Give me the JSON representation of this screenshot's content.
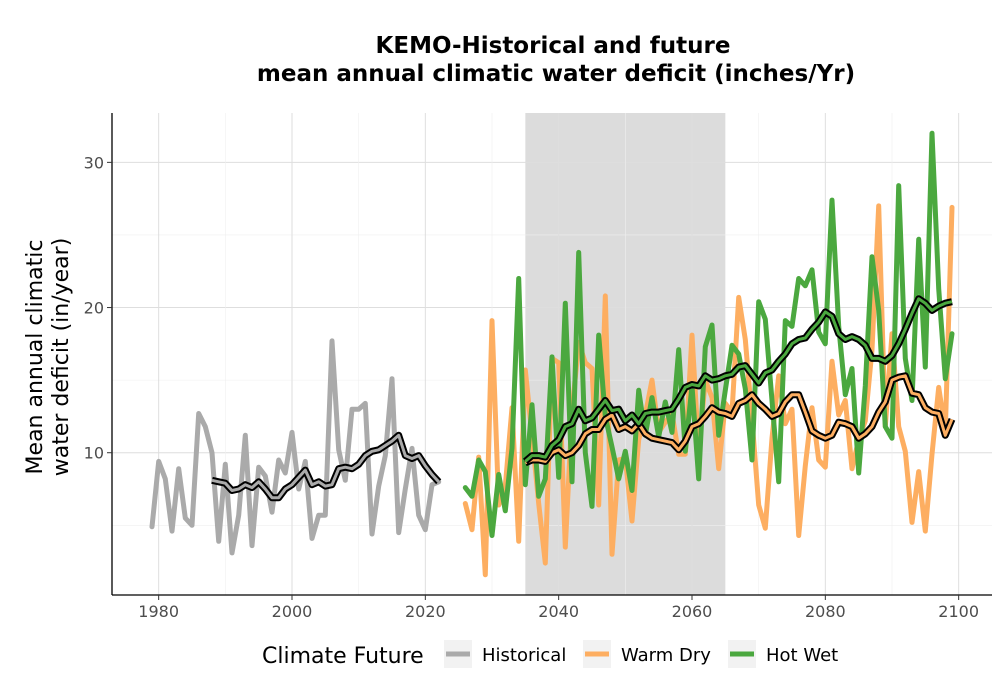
{
  "chart_data": {
    "type": "line",
    "title_line1": "KEMO-Historical and future",
    "title_line2": "mean annual climatic water deficit (inches/Yr)",
    "ylabel_line1": "Mean annual climatic",
    "ylabel_line2": "water deficit (in/year)",
    "xlabel": "",
    "xlim": [
      1973,
      2105
    ],
    "ylim": [
      0.2,
      33.4
    ],
    "xticks": [
      1980,
      2000,
      2020,
      2040,
      2060,
      2080,
      2100
    ],
    "yticks": [
      10,
      20,
      30
    ],
    "grid": true,
    "shaded_period": [
      2035,
      2065
    ],
    "legend": {
      "title": "Climate Future",
      "placement": "bottom"
    },
    "series": [
      {
        "name": "Historical",
        "color": "#aaaaaa",
        "x": [
          1979,
          1980,
          1981,
          1982,
          1983,
          1984,
          1985,
          1986,
          1987,
          1988,
          1989,
          1990,
          1991,
          1992,
          1993,
          1994,
          1995,
          1996,
          1997,
          1998,
          1999,
          2000,
          2001,
          2002,
          2003,
          2004,
          2005,
          2006,
          2007,
          2008,
          2009,
          2010,
          2011,
          2012,
          2013,
          2014,
          2015,
          2016,
          2017,
          2018,
          2019,
          2020,
          2021,
          2022
        ],
        "values": [
          4.9,
          9.4,
          8.2,
          4.6,
          8.9,
          5.5,
          5.0,
          12.7,
          11.8,
          10.0,
          3.9,
          9.2,
          3.1,
          5.7,
          11.2,
          3.6,
          9.0,
          8.4,
          5.9,
          9.5,
          8.6,
          11.4,
          7.5,
          9.4,
          4.1,
          5.7,
          5.7,
          17.7,
          10.2,
          8.1,
          13.0,
          13.0,
          13.4,
          4.4,
          7.7,
          9.8,
          15.1,
          4.5,
          7.5,
          10.3,
          5.7,
          4.7,
          7.8,
          8.0
        ]
      },
      {
        "name": "Warm Dry",
        "color": "#fdae61",
        "x": [
          2026,
          2027,
          2028,
          2029,
          2030,
          2031,
          2032,
          2033,
          2034,
          2035,
          2036,
          2037,
          2038,
          2039,
          2040,
          2041,
          2042,
          2043,
          2044,
          2045,
          2046,
          2047,
          2048,
          2049,
          2050,
          2051,
          2052,
          2053,
          2054,
          2055,
          2056,
          2057,
          2058,
          2059,
          2060,
          2061,
          2062,
          2063,
          2064,
          2065,
          2066,
          2067,
          2068,
          2069,
          2070,
          2071,
          2072,
          2073,
          2074,
          2075,
          2076,
          2077,
          2078,
          2079,
          2080,
          2081,
          2082,
          2083,
          2084,
          2085,
          2086,
          2087,
          2088,
          2089,
          2090,
          2091,
          2092,
          2093,
          2094,
          2095,
          2096,
          2097,
          2098,
          2099
        ],
        "values": [
          6.5,
          4.7,
          9.7,
          1.6,
          19.1,
          6.4,
          7.7,
          13.1,
          3.9,
          15.7,
          11.2,
          6.5,
          2.4,
          16.5,
          16.2,
          3.5,
          12.8,
          17.6,
          16.2,
          15.8,
          6.4,
          20.8,
          3.0,
          9.5,
          9.6,
          5.3,
          10.9,
          12.6,
          15.0,
          11.4,
          12.1,
          12.7,
          9.9,
          9.9,
          18.1,
          10.1,
          15.0,
          13.8,
          8.9,
          13.4,
          12.8,
          20.7,
          17.8,
          12.3,
          6.4,
          4.8,
          11.0,
          15.3,
          12.0,
          13.0,
          4.3,
          9.1,
          13.1,
          9.5,
          9.0,
          16.3,
          12.6,
          13.6,
          8.9,
          10.9,
          12.2,
          17.1,
          27.0,
          11.8,
          18.2,
          11.8,
          10.1,
          5.2,
          8.7,
          4.6,
          9.9,
          14.5,
          11.5,
          26.9
        ]
      },
      {
        "name": "Hot Wet",
        "color": "#4ba83f",
        "x": [
          2026,
          2027,
          2028,
          2029,
          2030,
          2031,
          2032,
          2033,
          2034,
          2035,
          2036,
          2037,
          2038,
          2039,
          2040,
          2041,
          2042,
          2043,
          2044,
          2045,
          2046,
          2047,
          2048,
          2049,
          2050,
          2051,
          2052,
          2053,
          2054,
          2055,
          2056,
          2057,
          2058,
          2059,
          2060,
          2061,
          2062,
          2063,
          2064,
          2065,
          2066,
          2067,
          2068,
          2069,
          2070,
          2071,
          2072,
          2073,
          2074,
          2075,
          2076,
          2077,
          2078,
          2079,
          2080,
          2081,
          2082,
          2083,
          2084,
          2085,
          2086,
          2087,
          2088,
          2089,
          2090,
          2091,
          2092,
          2093,
          2094,
          2095,
          2096,
          2097,
          2098,
          2099
        ],
        "values": [
          7.6,
          7.0,
          9.5,
          8.7,
          4.3,
          8.5,
          6.0,
          10.3,
          22.0,
          7.8,
          13.3,
          7.0,
          8.2,
          16.6,
          8.3,
          20.3,
          8.0,
          23.8,
          10.0,
          6.3,
          18.1,
          12.5,
          10.4,
          8.2,
          10.1,
          7.4,
          14.3,
          11.2,
          13.8,
          11.1,
          13.5,
          11.4,
          17.1,
          10.1,
          14.6,
          8.2,
          17.3,
          18.8,
          11.2,
          14.3,
          17.4,
          16.8,
          14.4,
          9.5,
          20.4,
          19.2,
          13.6,
          8.0,
          19.1,
          18.7,
          22.0,
          21.5,
          22.6,
          18.3,
          17.5,
          27.4,
          18.7,
          14.0,
          15.8,
          8.6,
          14.6,
          23.5,
          19.8,
          11.8,
          11.0,
          28.4,
          16.5,
          13.6,
          24.7,
          15.9,
          32.0,
          21.3,
          15.1,
          18.2
        ]
      }
    ],
    "rolling_mean": [
      {
        "series": "Historical",
        "x": [
          1988,
          1989,
          1990,
          1991,
          1992,
          1993,
          1994,
          1995,
          1996,
          1997,
          1998,
          1999,
          2000,
          2001,
          2002,
          2003,
          2004,
          2005,
          2006,
          2007,
          2008,
          2009,
          2010,
          2011,
          2012,
          2013,
          2014,
          2015,
          2016,
          2017,
          2018,
          2019,
          2020,
          2021,
          2022
        ],
        "values": [
          8.1,
          8.0,
          7.9,
          7.4,
          7.5,
          7.8,
          7.6,
          8.0,
          7.5,
          6.9,
          6.9,
          7.5,
          7.8,
          8.3,
          8.8,
          7.8,
          8.0,
          7.7,
          7.8,
          8.9,
          9.0,
          8.9,
          9.2,
          9.8,
          10.1,
          10.2,
          10.5,
          10.8,
          11.2,
          9.8,
          9.6,
          9.8,
          9.1,
          8.5,
          8.0
        ]
      },
      {
        "series": "Warm Dry",
        "x": [
          2035,
          2036,
          2037,
          2038,
          2039,
          2040,
          2041,
          2042,
          2043,
          2044,
          2045,
          2046,
          2047,
          2048,
          2049,
          2050,
          2051,
          2052,
          2053,
          2054,
          2055,
          2056,
          2057,
          2058,
          2059,
          2060,
          2061,
          2062,
          2063,
          2064,
          2065,
          2066,
          2067,
          2068,
          2069,
          2070,
          2071,
          2072,
          2073,
          2074,
          2075,
          2076,
          2077,
          2078,
          2079,
          2080,
          2081,
          2082,
          2083,
          2084,
          2085,
          2086,
          2087,
          2088,
          2089,
          2090,
          2091,
          2092,
          2093,
          2094,
          2095,
          2096,
          2097,
          2098,
          2099
        ],
        "values": [
          9.3,
          9.5,
          9.5,
          9.4,
          10.0,
          10.2,
          9.8,
          10.0,
          10.5,
          11.3,
          11.6,
          11.6,
          12.3,
          12.6,
          11.6,
          11.8,
          11.5,
          12.0,
          11.3,
          11.0,
          10.9,
          10.8,
          10.7,
          10.2,
          10.8,
          11.8,
          12.0,
          12.5,
          13.1,
          12.8,
          12.7,
          12.5,
          13.4,
          13.6,
          14.0,
          13.4,
          13.0,
          12.5,
          12.7,
          13.5,
          14.0,
          14.0,
          12.8,
          11.5,
          11.2,
          11.0,
          11.2,
          12.1,
          12.0,
          11.8,
          11.0,
          11.3,
          11.8,
          12.8,
          13.5,
          15.0,
          15.2,
          15.3,
          14.1,
          14.0,
          13.1,
          12.8,
          12.7,
          11.2,
          12.3
        ]
      },
      {
        "series": "Hot Wet",
        "x": [
          2035,
          2036,
          2037,
          2038,
          2039,
          2040,
          2041,
          2042,
          2043,
          2044,
          2045,
          2046,
          2047,
          2048,
          2049,
          2050,
          2051,
          2052,
          2053,
          2054,
          2055,
          2056,
          2057,
          2058,
          2059,
          2060,
          2061,
          2062,
          2063,
          2064,
          2065,
          2066,
          2067,
          2068,
          2069,
          2070,
          2071,
          2072,
          2073,
          2074,
          2075,
          2076,
          2077,
          2078,
          2079,
          2080,
          2081,
          2082,
          2083,
          2084,
          2085,
          2086,
          2087,
          2088,
          2089,
          2090,
          2091,
          2092,
          2093,
          2094,
          2095,
          2096,
          2097,
          2098,
          2099
        ],
        "values": [
          9.4,
          9.8,
          9.8,
          9.7,
          10.5,
          10.9,
          11.8,
          12.0,
          13.0,
          12.2,
          12.4,
          13.0,
          13.6,
          12.9,
          13.0,
          12.2,
          12.6,
          12.0,
          12.7,
          12.8,
          12.8,
          12.9,
          13.0,
          13.7,
          14.5,
          14.7,
          14.6,
          15.3,
          15.0,
          15.1,
          15.3,
          15.4,
          15.9,
          16.0,
          15.4,
          14.8,
          15.5,
          15.7,
          16.3,
          16.8,
          17.5,
          17.8,
          17.9,
          18.5,
          19.0,
          19.7,
          19.4,
          18.2,
          17.8,
          18.0,
          17.8,
          17.4,
          16.5,
          16.5,
          16.3,
          16.7,
          17.5,
          18.5,
          19.6,
          20.6,
          20.3,
          19.8,
          20.1,
          20.3,
          20.4
        ]
      }
    ]
  }
}
